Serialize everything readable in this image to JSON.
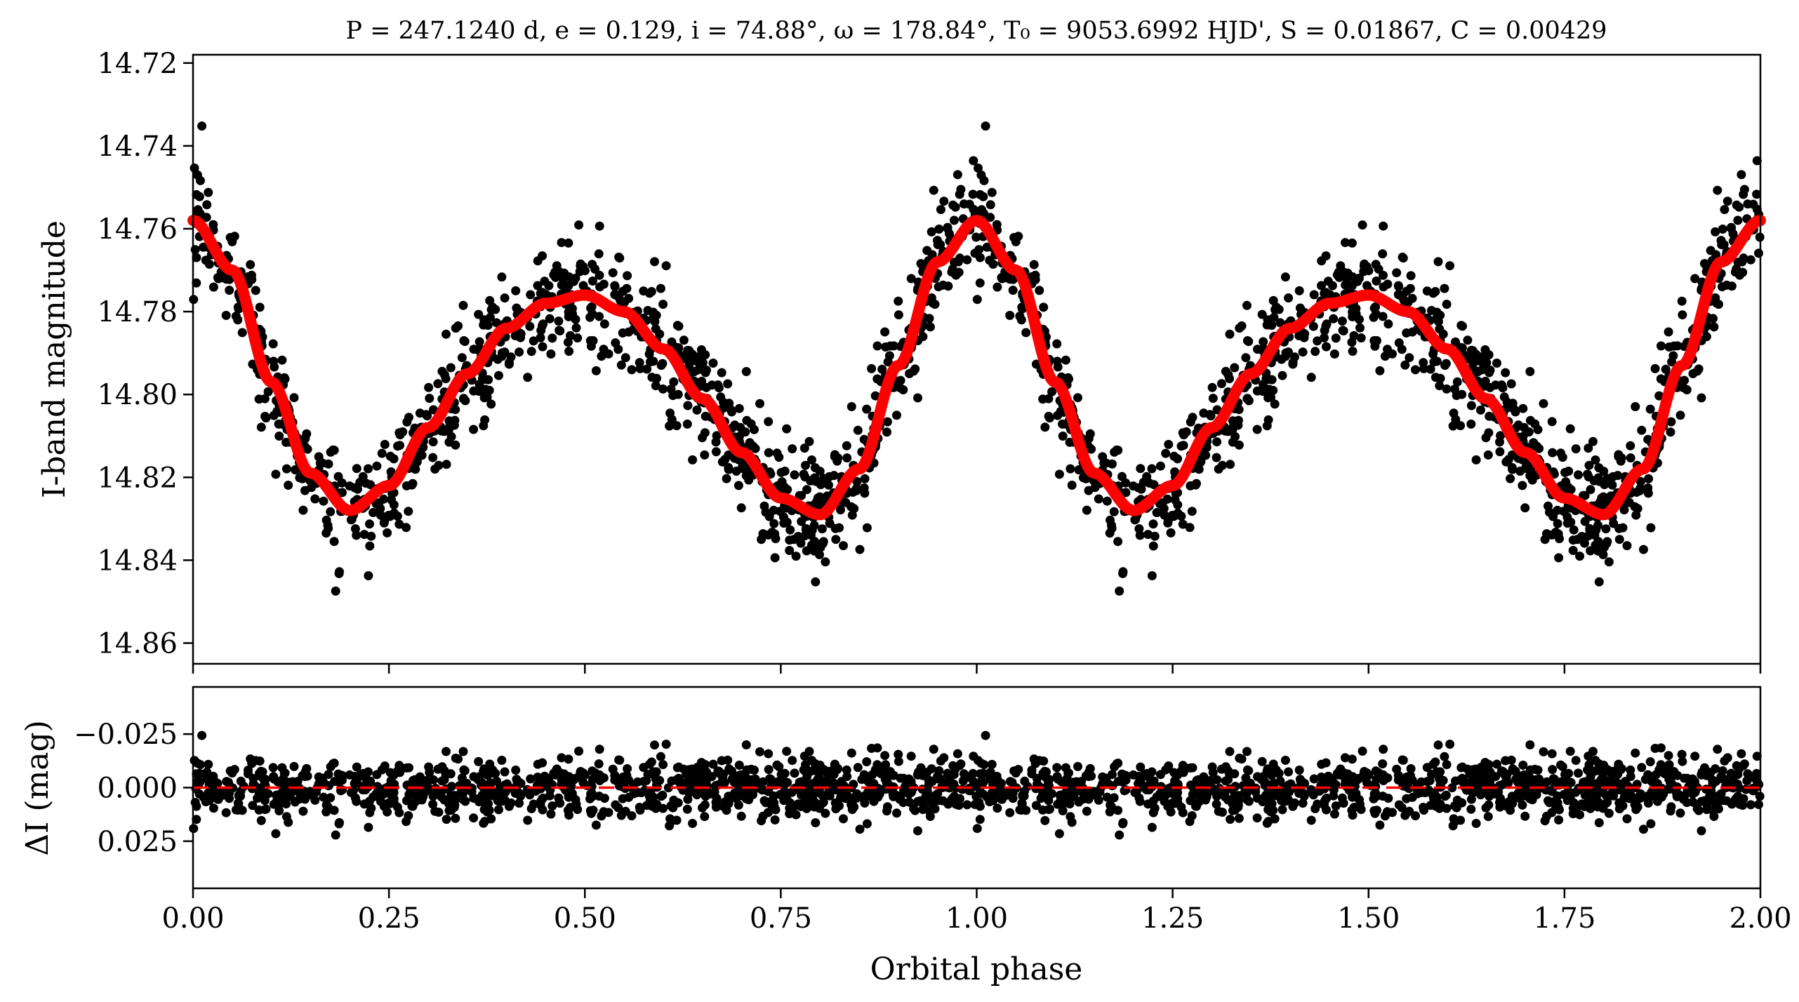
{
  "chart_data": [
    {
      "type": "scatter",
      "panel": "top",
      "title": "P = 247.1240 d, e = 0.129, i = 74.88°, ω = 178.84°, T₀ = 9053.6992 HJD', S = 0.01867, C = 0.00429",
      "xlabel": "",
      "ylabel": "I-band magnitude",
      "xlim": [
        0.0,
        2.0
      ],
      "ylim": [
        14.865,
        14.718
      ],
      "y_inverted": true,
      "yticks": [
        "14.72",
        "14.74",
        "14.76",
        "14.78",
        "14.80",
        "14.82",
        "14.84",
        "14.86"
      ],
      "ytick_values": [
        14.72,
        14.74,
        14.76,
        14.78,
        14.8,
        14.82,
        14.84,
        14.86
      ],
      "xticks_values": [
        0.0,
        0.25,
        0.5,
        0.75,
        1.0,
        1.25,
        1.5,
        1.75,
        2.0
      ],
      "grid": false,
      "point_color": "#000000",
      "series": [
        {
          "kind": "data",
          "points_repeat_period": 1.0,
          "profile_phase": [
            0.0,
            0.05,
            0.1,
            0.15,
            0.2,
            0.25,
            0.3,
            0.35,
            0.4,
            0.45,
            0.5,
            0.55,
            0.6,
            0.65,
            0.7,
            0.75,
            0.8,
            0.85,
            0.9,
            0.95,
            1.0
          ],
          "profile_mag": [
            14.758,
            14.77,
            14.797,
            14.819,
            14.828,
            14.822,
            14.808,
            14.795,
            14.784,
            14.778,
            14.776,
            14.78,
            14.789,
            14.801,
            14.814,
            14.825,
            14.829,
            14.818,
            14.793,
            14.768,
            14.758
          ],
          "scatter_mag": 0.007
        },
        {
          "kind": "model",
          "color": "#ff0000",
          "x": [
            0.0,
            0.05,
            0.1,
            0.15,
            0.2,
            0.25,
            0.3,
            0.35,
            0.4,
            0.45,
            0.5,
            0.55,
            0.6,
            0.65,
            0.7,
            0.75,
            0.8,
            0.85,
            0.9,
            0.95,
            1.0,
            1.05,
            1.1,
            1.15,
            1.2,
            1.25,
            1.3,
            1.35,
            1.4,
            1.45,
            1.5,
            1.55,
            1.6,
            1.65,
            1.7,
            1.75,
            1.8,
            1.85,
            1.9,
            1.95,
            2.0
          ],
          "y": [
            14.758,
            14.77,
            14.797,
            14.819,
            14.828,
            14.822,
            14.808,
            14.795,
            14.784,
            14.778,
            14.776,
            14.78,
            14.789,
            14.801,
            14.814,
            14.825,
            14.829,
            14.818,
            14.793,
            14.768,
            14.758,
            14.77,
            14.797,
            14.819,
            14.828,
            14.822,
            14.808,
            14.795,
            14.784,
            14.778,
            14.776,
            14.78,
            14.789,
            14.801,
            14.814,
            14.825,
            14.829,
            14.818,
            14.793,
            14.768,
            14.758
          ]
        }
      ]
    },
    {
      "type": "scatter",
      "panel": "bottom",
      "xlabel": "Orbital phase",
      "ylabel": "ΔI (mag)",
      "xlim": [
        0.0,
        2.0
      ],
      "ylim": [
        0.047,
        -0.047
      ],
      "y_inverted": true,
      "xticks": [
        "0.00",
        "0.25",
        "0.50",
        "0.75",
        "1.00",
        "1.25",
        "1.50",
        "1.75",
        "2.00"
      ],
      "xtick_values": [
        0.0,
        0.25,
        0.5,
        0.75,
        1.0,
        1.25,
        1.5,
        1.75,
        2.0
      ],
      "yticks": [
        "−0.025",
        "0.000",
        "0.025"
      ],
      "ytick_values": [
        -0.025,
        0.0,
        0.025
      ],
      "grid": false,
      "point_color": "#000000",
      "reference_line": {
        "y": 0.0,
        "style": "dashed",
        "color": "#ff0000"
      },
      "series": [
        {
          "kind": "residuals",
          "scatter_mag": 0.007
        }
      ]
    }
  ]
}
